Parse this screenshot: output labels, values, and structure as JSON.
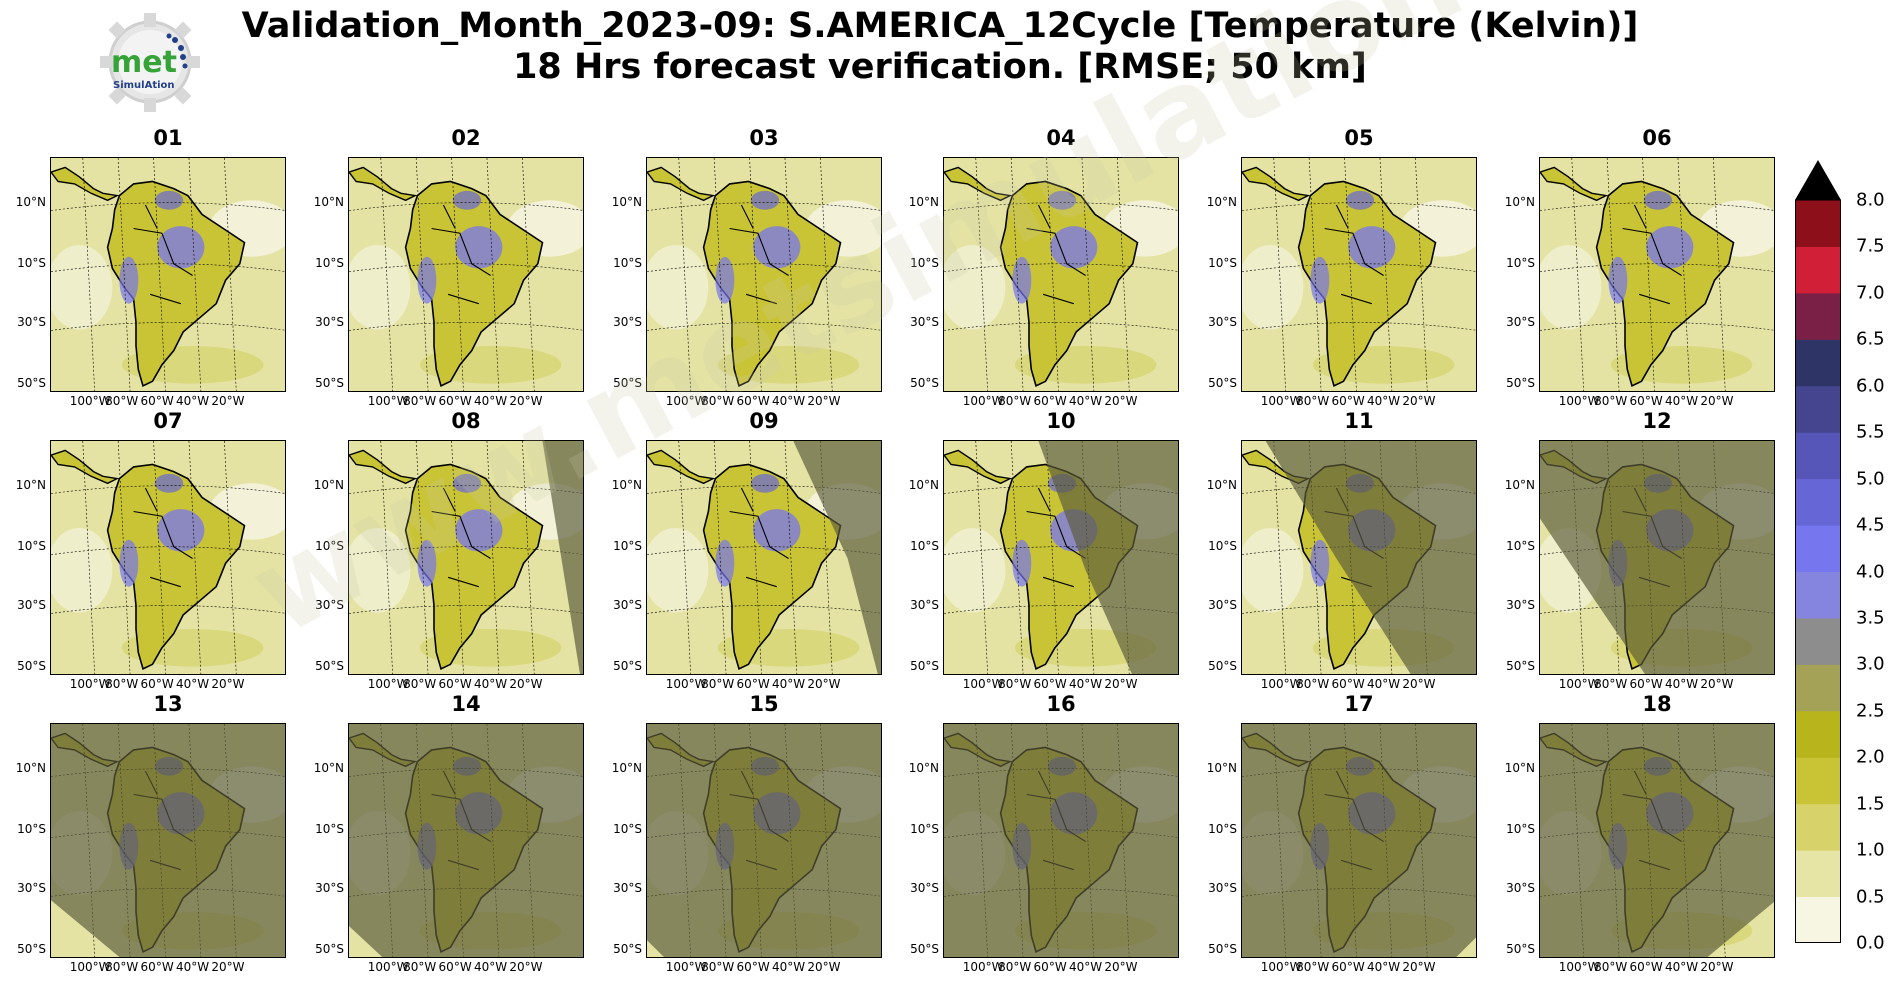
{
  "title_line1": "Validation_Month_2023-09: S.AMERICA_12Cycle [Temperature (Kelvin)]",
  "title_line2": "18 Hrs forecast verification.  [RMSE; 50 km]",
  "logo": {
    "text": "met",
    "subtext": "SimulAtion",
    "icon": "gear-logo-icon"
  },
  "watermark": "www.metsimulation.com",
  "y_ticks": [
    "10°N",
    "10°S",
    "30°S",
    "50°S"
  ],
  "x_ticks": [
    "100°W",
    "80°W",
    "60°W",
    "40°W",
    "20°W"
  ],
  "panels": [
    "01",
    "02",
    "03",
    "04",
    "05",
    "06",
    "07",
    "08",
    "09",
    "10",
    "11",
    "12",
    "13",
    "14",
    "15",
    "16",
    "17",
    "18"
  ],
  "colorbar": {
    "ticks": [
      "0.0",
      "0.5",
      "1.0",
      "1.5",
      "2.0",
      "2.5",
      "3.0",
      "3.5",
      "4.0",
      "4.5",
      "5.0",
      "5.5",
      "6.0",
      "6.5",
      "7.0",
      "7.5",
      "8.0"
    ],
    "colors": [
      "#f7f6e2",
      "#e6e5a6",
      "#d7d36a",
      "#c9c435",
      "#b8b41c",
      "#a3a257",
      "#8d8d8d",
      "#8585df",
      "#7676ee",
      "#6666d6",
      "#5656b8",
      "#45458f",
      "#2f3466",
      "#7a2046",
      "#d01f36",
      "#8c0f1a"
    ],
    "extend_color": "#000000"
  }
}
